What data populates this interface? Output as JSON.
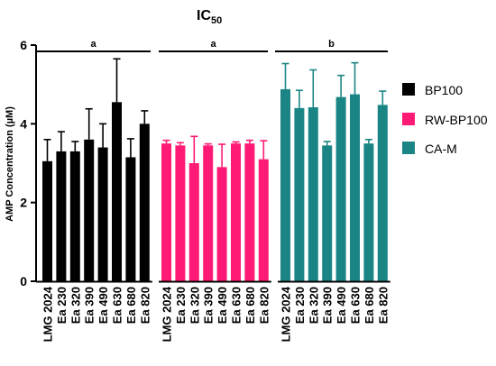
{
  "chart_data": {
    "type": "bar",
    "title_main": "IC",
    "title_sub": "50",
    "ylabel": "AMP Concentration (µM)",
    "xlabel": "",
    "ylim": [
      0,
      6
    ],
    "yticks": [
      0,
      2,
      4,
      6
    ],
    "grid": false,
    "legend_position": "right",
    "categories": [
      "LMG 2024",
      "Ea 230",
      "Ea 320",
      "Ea 390",
      "Ea 490",
      "Ea 630",
      "Ea 680",
      "Ea 820"
    ],
    "series": [
      {
        "name": "BP100",
        "color": "#000000",
        "values": [
          3.05,
          3.3,
          3.3,
          3.6,
          3.4,
          4.55,
          3.15,
          4.0
        ],
        "errors": [
          0.55,
          0.5,
          0.25,
          0.78,
          0.6,
          1.1,
          0.47,
          0.33
        ]
      },
      {
        "name": "RW-BP100",
        "color": "#ff1a75",
        "values": [
          3.5,
          3.45,
          3.0,
          3.45,
          2.9,
          3.5,
          3.5,
          3.1
        ],
        "errors": [
          0.08,
          0.07,
          0.68,
          0.04,
          0.58,
          0.04,
          0.08,
          0.47
        ]
      },
      {
        "name": "CA-M",
        "color": "#1b8585",
        "values": [
          4.88,
          4.4,
          4.42,
          3.45,
          4.68,
          4.75,
          3.5,
          4.48
        ],
        "errors": [
          0.65,
          0.45,
          0.95,
          0.1,
          0.55,
          0.8,
          0.1,
          0.35
        ]
      }
    ],
    "significance_labels": [
      "a",
      "a",
      "b"
    ]
  }
}
